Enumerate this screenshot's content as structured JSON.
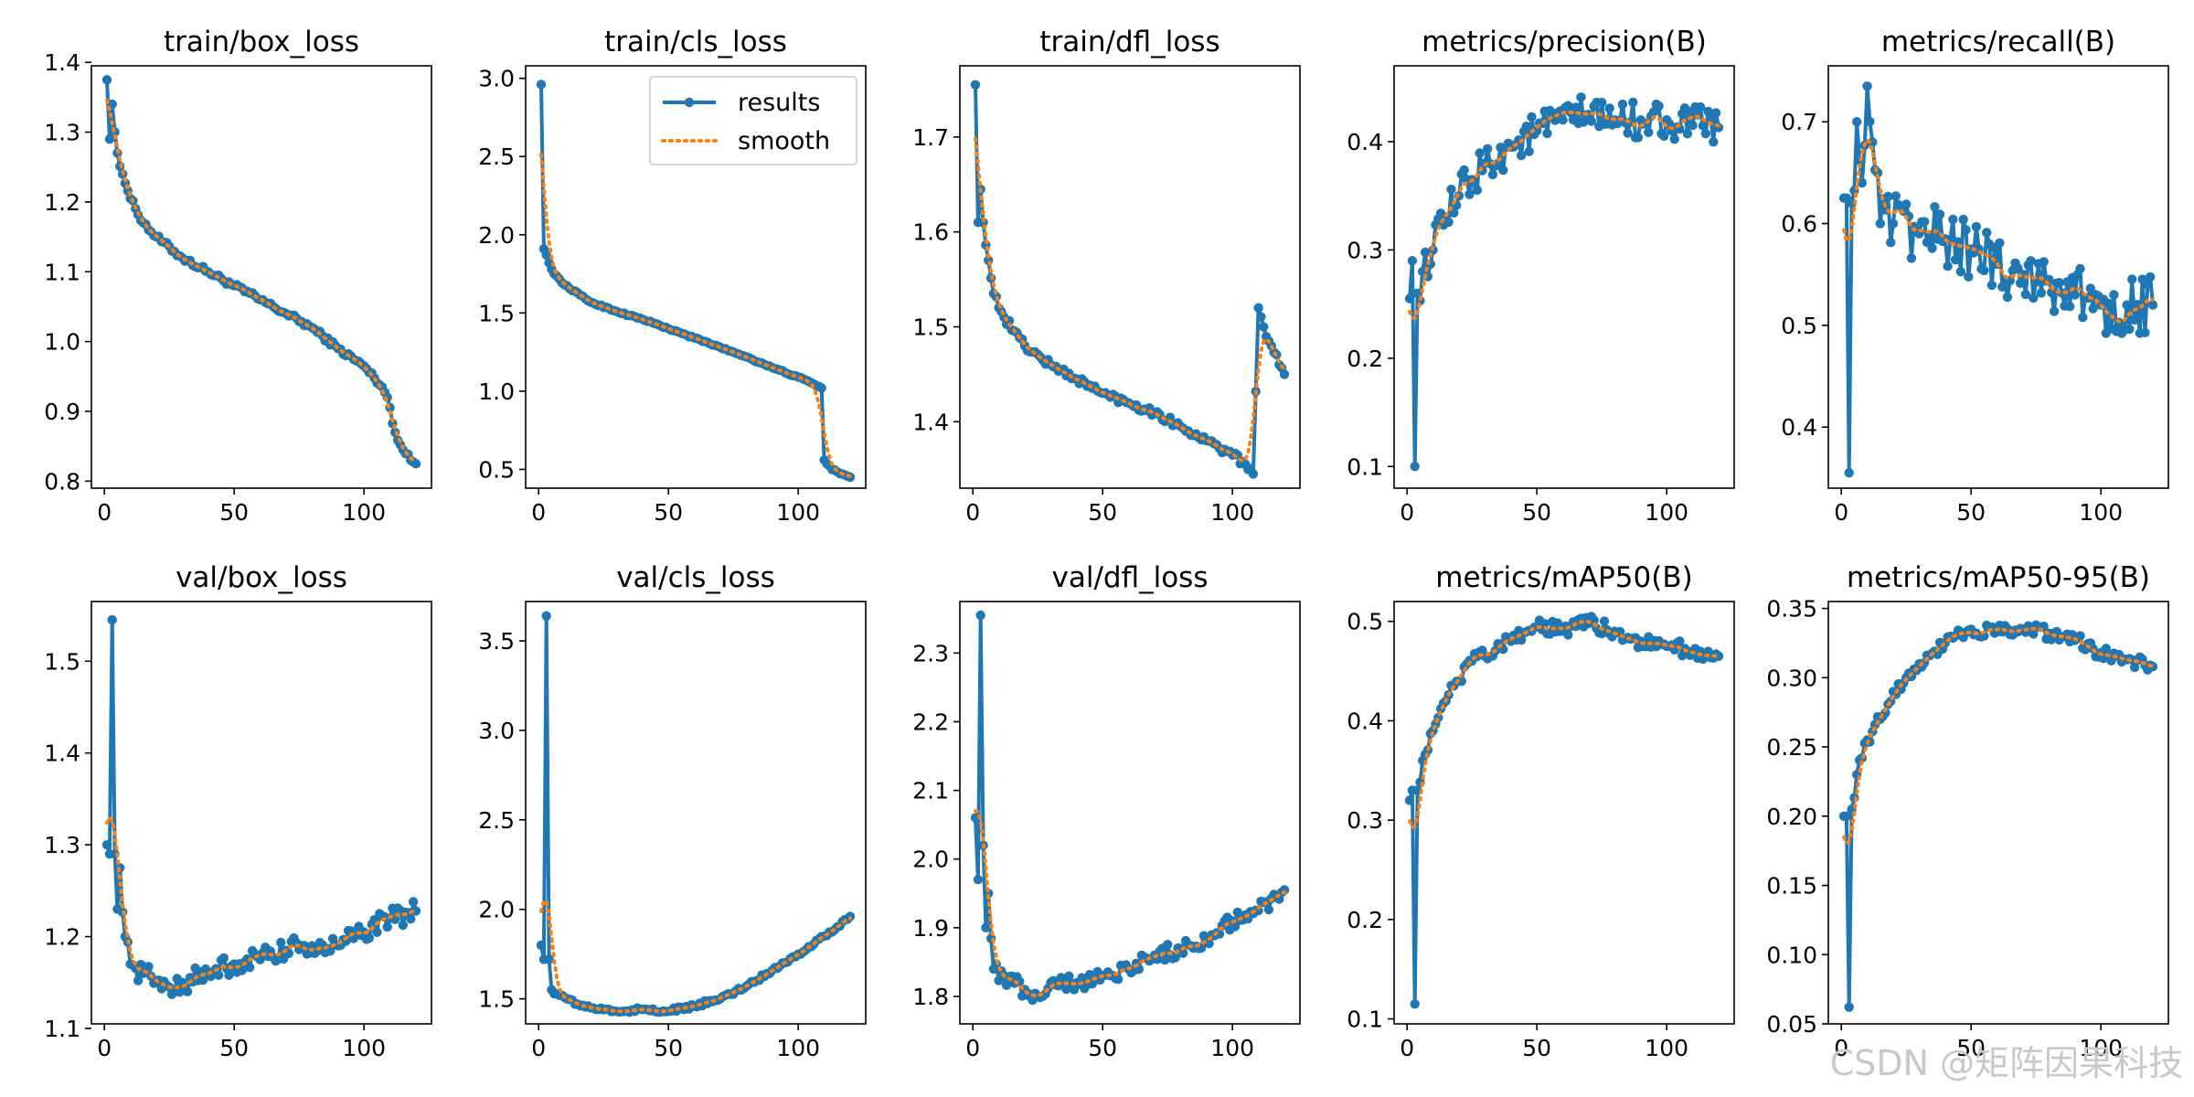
{
  "legend": {
    "results": "results",
    "smooth": "smooth"
  },
  "watermark": "CSDN @矩阵因果科技",
  "colors": {
    "results": "#1f77b4",
    "smooth": "#ff7f0e"
  },
  "chart_data": [
    {
      "type": "line",
      "title": "train/box_loss",
      "xlim": [
        -5,
        126
      ],
      "ylim": [
        0.79,
        1.395
      ],
      "xticks": [
        0,
        50,
        100
      ],
      "yticks": [
        0.8,
        0.9,
        1.0,
        1.1,
        1.2,
        1.3,
        1.4
      ],
      "ytick_labels": [
        "0.8",
        "0.9",
        "1.0",
        "1.1",
        "1.2",
        "1.3",
        "1.4"
      ],
      "keypoints": [
        [
          1,
          1.375
        ],
        [
          2,
          1.29
        ],
        [
          3,
          1.34
        ],
        [
          4,
          1.3
        ],
        [
          5,
          1.27
        ],
        [
          7,
          1.24
        ],
        [
          10,
          1.205
        ],
        [
          15,
          1.17
        ],
        [
          20,
          1.15
        ],
        [
          30,
          1.12
        ],
        [
          40,
          1.1
        ],
        [
          50,
          1.08
        ],
        [
          60,
          1.06
        ],
        [
          70,
          1.04
        ],
        [
          80,
          1.02
        ],
        [
          90,
          0.99
        ],
        [
          100,
          0.965
        ],
        [
          107,
          0.935
        ],
        [
          109,
          0.92
        ],
        [
          112,
          0.87
        ],
        [
          115,
          0.845
        ],
        [
          118,
          0.83
        ],
        [
          120,
          0.825
        ]
      ],
      "noise": 0.004,
      "show_legend": false
    },
    {
      "type": "line",
      "title": "train/cls_loss",
      "xlim": [
        -5,
        126
      ],
      "ylim": [
        0.38,
        3.08
      ],
      "xticks": [
        0,
        50,
        100
      ],
      "yticks": [
        0.5,
        1.0,
        1.5,
        2.0,
        2.5,
        3.0
      ],
      "ytick_labels": [
        "0.5",
        "1.0",
        "1.5",
        "2.0",
        "2.5",
        "3.0"
      ],
      "keypoints": [
        [
          1,
          2.96
        ],
        [
          2,
          1.91
        ],
        [
          3,
          1.87
        ],
        [
          4,
          1.82
        ],
        [
          6,
          1.75
        ],
        [
          10,
          1.68
        ],
        [
          20,
          1.57
        ],
        [
          30,
          1.51
        ],
        [
          40,
          1.46
        ],
        [
          50,
          1.4
        ],
        [
          60,
          1.34
        ],
        [
          70,
          1.28
        ],
        [
          80,
          1.22
        ],
        [
          90,
          1.15
        ],
        [
          100,
          1.09
        ],
        [
          108,
          1.03
        ],
        [
          109,
          1.02
        ],
        [
          110,
          0.56
        ],
        [
          113,
          0.5
        ],
        [
          117,
          0.47
        ],
        [
          120,
          0.45
        ]
      ],
      "noise": 0.005,
      "show_legend": true
    },
    {
      "type": "line",
      "title": "train/dfl_loss",
      "xlim": [
        -5,
        126
      ],
      "ylim": [
        1.33,
        1.775
      ],
      "xticks": [
        0,
        50,
        100
      ],
      "yticks": [
        1.4,
        1.5,
        1.6,
        1.7
      ],
      "ytick_labels": [
        "1.4",
        "1.5",
        "1.6",
        "1.7"
      ],
      "keypoints": [
        [
          1,
          1.755
        ],
        [
          2,
          1.61
        ],
        [
          3,
          1.645
        ],
        [
          4,
          1.61
        ],
        [
          6,
          1.57
        ],
        [
          8,
          1.535
        ],
        [
          12,
          1.51
        ],
        [
          20,
          1.48
        ],
        [
          30,
          1.46
        ],
        [
          40,
          1.445
        ],
        [
          50,
          1.43
        ],
        [
          60,
          1.42
        ],
        [
          70,
          1.41
        ],
        [
          80,
          1.395
        ],
        [
          90,
          1.38
        ],
        [
          100,
          1.365
        ],
        [
          105,
          1.355
        ],
        [
          108,
          1.345
        ],
        [
          110,
          1.52
        ],
        [
          112,
          1.5
        ],
        [
          115,
          1.48
        ],
        [
          118,
          1.46
        ],
        [
          120,
          1.45
        ]
      ],
      "noise": 0.004,
      "show_legend": false
    },
    {
      "type": "line",
      "title": "metrics/precision(B)",
      "xlim": [
        -5,
        126
      ],
      "ylim": [
        0.08,
        0.47
      ],
      "xticks": [
        0,
        50,
        100
      ],
      "yticks": [
        0.1,
        0.2,
        0.3,
        0.4
      ],
      "ytick_labels": [
        "0.1",
        "0.2",
        "0.3",
        "0.4"
      ],
      "keypoints": [
        [
          1,
          0.255
        ],
        [
          2,
          0.29
        ],
        [
          3,
          0.1
        ],
        [
          4,
          0.26
        ],
        [
          6,
          0.28
        ],
        [
          10,
          0.3
        ],
        [
          15,
          0.33
        ],
        [
          20,
          0.35
        ],
        [
          25,
          0.365
        ],
        [
          30,
          0.38
        ],
        [
          40,
          0.395
        ],
        [
          50,
          0.41
        ],
        [
          60,
          0.42
        ],
        [
          70,
          0.425
        ],
        [
          80,
          0.42
        ],
        [
          90,
          0.42
        ],
        [
          100,
          0.42
        ],
        [
          110,
          0.415
        ],
        [
          120,
          0.413
        ]
      ],
      "noise": 0.018,
      "show_legend": false
    },
    {
      "type": "line",
      "title": "metrics/recall(B)",
      "xlim": [
        -5,
        126
      ],
      "ylim": [
        0.34,
        0.755
      ],
      "xticks": [
        0,
        50,
        100
      ],
      "yticks": [
        0.4,
        0.5,
        0.6,
        0.7
      ],
      "ytick_labels": [
        "0.4",
        "0.5",
        "0.6",
        "0.7"
      ],
      "keypoints": [
        [
          1,
          0.625
        ],
        [
          2,
          0.625
        ],
        [
          3,
          0.355
        ],
        [
          4,
          0.62
        ],
        [
          6,
          0.7
        ],
        [
          8,
          0.64
        ],
        [
          10,
          0.735
        ],
        [
          12,
          0.68
        ],
        [
          15,
          0.6
        ],
        [
          20,
          0.6
        ],
        [
          30,
          0.59
        ],
        [
          40,
          0.585
        ],
        [
          50,
          0.575
        ],
        [
          60,
          0.56
        ],
        [
          70,
          0.55
        ],
        [
          80,
          0.545
        ],
        [
          90,
          0.53
        ],
        [
          100,
          0.52
        ],
        [
          110,
          0.52
        ],
        [
          120,
          0.52
        ]
      ],
      "noise": 0.03,
      "show_legend": false
    },
    {
      "type": "line",
      "title": "val/box_loss",
      "xlim": [
        -5,
        126
      ],
      "ylim": [
        1.105,
        1.565
      ],
      "xticks": [
        0,
        50,
        100
      ],
      "yticks": [
        1.1,
        1.2,
        1.3,
        1.4,
        1.5
      ],
      "ytick_labels": [
        "1.1",
        "1.2",
        "1.3",
        "1.4",
        "1.5"
      ],
      "keypoints": [
        [
          1,
          1.3
        ],
        [
          2,
          1.29
        ],
        [
          3,
          1.545
        ],
        [
          4,
          1.29
        ],
        [
          5,
          1.23
        ],
        [
          6,
          1.275
        ],
        [
          8,
          1.2
        ],
        [
          10,
          1.17
        ],
        [
          15,
          1.16
        ],
        [
          20,
          1.15
        ],
        [
          25,
          1.145
        ],
        [
          30,
          1.15
        ],
        [
          40,
          1.16
        ],
        [
          50,
          1.17
        ],
        [
          60,
          1.175
        ],
        [
          70,
          1.185
        ],
        [
          80,
          1.19
        ],
        [
          90,
          1.19
        ],
        [
          100,
          1.205
        ],
        [
          110,
          1.22
        ],
        [
          120,
          1.228
        ]
      ],
      "noise": 0.012,
      "show_legend": false
    },
    {
      "type": "line",
      "title": "val/cls_loss",
      "xlim": [
        -5,
        126
      ],
      "ylim": [
        1.36,
        3.72
      ],
      "xticks": [
        0,
        50,
        100
      ],
      "yticks": [
        1.5,
        2.0,
        2.5,
        3.0,
        3.5
      ],
      "ytick_labels": [
        "1.5",
        "2.0",
        "2.5",
        "3.0",
        "3.5"
      ],
      "keypoints": [
        [
          1,
          1.8
        ],
        [
          2,
          1.72
        ],
        [
          3,
          3.64
        ],
        [
          4,
          1.72
        ],
        [
          5,
          1.55
        ],
        [
          8,
          1.52
        ],
        [
          15,
          1.47
        ],
        [
          20,
          1.45
        ],
        [
          30,
          1.43
        ],
        [
          40,
          1.44
        ],
        [
          50,
          1.43
        ],
        [
          60,
          1.46
        ],
        [
          70,
          1.5
        ],
        [
          80,
          1.57
        ],
        [
          90,
          1.66
        ],
        [
          100,
          1.75
        ],
        [
          110,
          1.85
        ],
        [
          120,
          1.96
        ]
      ],
      "noise": 0.012,
      "show_legend": false
    },
    {
      "type": "line",
      "title": "val/dfl_loss",
      "xlim": [
        -5,
        126
      ],
      "ylim": [
        1.76,
        2.375
      ],
      "xticks": [
        0,
        50,
        100
      ],
      "yticks": [
        1.8,
        1.9,
        2.0,
        2.1,
        2.2,
        2.3
      ],
      "ytick_labels": [
        "1.8",
        "1.9",
        "2.0",
        "2.1",
        "2.2",
        "2.3"
      ],
      "keypoints": [
        [
          1,
          2.06
        ],
        [
          2,
          1.97
        ],
        [
          3,
          2.355
        ],
        [
          4,
          2.02
        ],
        [
          5,
          1.9
        ],
        [
          6,
          1.95
        ],
        [
          8,
          1.84
        ],
        [
          12,
          1.83
        ],
        [
          20,
          1.81
        ],
        [
          25,
          1.8
        ],
        [
          30,
          1.82
        ],
        [
          40,
          1.82
        ],
        [
          50,
          1.83
        ],
        [
          60,
          1.84
        ],
        [
          70,
          1.86
        ],
        [
          80,
          1.87
        ],
        [
          90,
          1.88
        ],
        [
          100,
          1.91
        ],
        [
          110,
          1.925
        ],
        [
          120,
          1.955
        ]
      ],
      "noise": 0.012,
      "show_legend": false
    },
    {
      "type": "line",
      "title": "metrics/mAP50(B)",
      "xlim": [
        -5,
        126
      ],
      "ylim": [
        0.095,
        0.52
      ],
      "xticks": [
        0,
        50,
        100
      ],
      "yticks": [
        0.1,
        0.2,
        0.3,
        0.4,
        0.5
      ],
      "ytick_labels": [
        "0.1",
        "0.2",
        "0.3",
        "0.4",
        "0.5"
      ],
      "keypoints": [
        [
          1,
          0.32
        ],
        [
          2,
          0.33
        ],
        [
          3,
          0.115
        ],
        [
          4,
          0.33
        ],
        [
          6,
          0.36
        ],
        [
          10,
          0.39
        ],
        [
          15,
          0.42
        ],
        [
          20,
          0.44
        ],
        [
          25,
          0.46
        ],
        [
          30,
          0.465
        ],
        [
          40,
          0.48
        ],
        [
          50,
          0.495
        ],
        [
          60,
          0.493
        ],
        [
          70,
          0.498
        ],
        [
          80,
          0.49
        ],
        [
          90,
          0.48
        ],
        [
          100,
          0.475
        ],
        [
          110,
          0.47
        ],
        [
          120,
          0.465
        ]
      ],
      "noise": 0.008,
      "show_legend": false
    },
    {
      "type": "line",
      "title": "metrics/mAP50-95(B)",
      "xlim": [
        -5,
        126
      ],
      "ylim": [
        0.05,
        0.355
      ],
      "xticks": [
        0,
        50,
        100
      ],
      "yticks": [
        0.05,
        0.1,
        0.15,
        0.2,
        0.25,
        0.3,
        0.35
      ],
      "ytick_labels": [
        "0.05",
        "0.10",
        "0.15",
        "0.20",
        "0.25",
        "0.30",
        "0.35"
      ],
      "keypoints": [
        [
          1,
          0.2
        ],
        [
          2,
          0.2
        ],
        [
          3,
          0.062
        ],
        [
          4,
          0.205
        ],
        [
          6,
          0.23
        ],
        [
          10,
          0.255
        ],
        [
          15,
          0.27
        ],
        [
          20,
          0.29
        ],
        [
          25,
          0.3
        ],
        [
          30,
          0.31
        ],
        [
          40,
          0.325
        ],
        [
          50,
          0.335
        ],
        [
          60,
          0.333
        ],
        [
          70,
          0.335
        ],
        [
          80,
          0.332
        ],
        [
          90,
          0.327
        ],
        [
          100,
          0.318
        ],
        [
          110,
          0.313
        ],
        [
          120,
          0.308
        ]
      ],
      "noise": 0.005,
      "show_legend": false
    }
  ]
}
